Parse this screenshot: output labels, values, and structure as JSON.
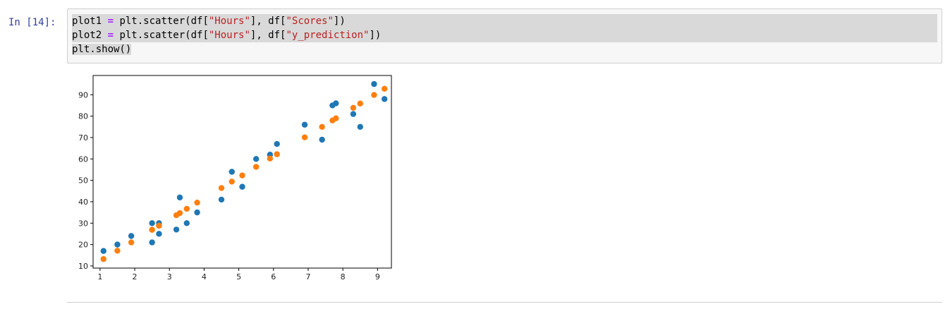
{
  "cell": {
    "prompt": "In [14]:",
    "code_lines": [
      [
        {
          "t": "plot1 ",
          "c": ""
        },
        {
          "t": "=",
          "c": "op"
        },
        {
          "t": " plt.scatter(df[",
          "c": ""
        },
        {
          "t": "\"Hours\"",
          "c": "str"
        },
        {
          "t": "], df[",
          "c": ""
        },
        {
          "t": "\"Scores\"",
          "c": "str"
        },
        {
          "t": "])",
          "c": ""
        }
      ],
      [
        {
          "t": "plot2 ",
          "c": ""
        },
        {
          "t": "=",
          "c": "op"
        },
        {
          "t": " plt.scatter(df[",
          "c": ""
        },
        {
          "t": "\"Hours\"",
          "c": "str"
        },
        {
          "t": "], df[",
          "c": ""
        },
        {
          "t": "\"y_prediction\"",
          "c": "str"
        },
        {
          "t": "])",
          "c": ""
        }
      ],
      [
        {
          "t": "plt.show()",
          "c": ""
        }
      ]
    ]
  },
  "colors": {
    "series1": "#1f77b4",
    "series2": "#ff7f0e",
    "prompt": "#303f9f",
    "keyword_op": "#aa22ff",
    "string": "#ba2121"
  },
  "chart_data": {
    "type": "scatter",
    "xlim": [
      0.8,
      9.4
    ],
    "ylim": [
      9,
      99
    ],
    "xticks": [
      1,
      2,
      3,
      4,
      5,
      6,
      7,
      8,
      9
    ],
    "yticks": [
      10,
      20,
      30,
      40,
      50,
      60,
      70,
      80,
      90
    ],
    "grid": false,
    "series": [
      {
        "color": "#1f77b4",
        "points": [
          [
            2.5,
            21
          ],
          [
            5.1,
            47
          ],
          [
            3.2,
            27
          ],
          [
            8.5,
            75
          ],
          [
            3.5,
            30
          ],
          [
            1.5,
            20
          ],
          [
            9.2,
            88
          ],
          [
            5.5,
            60
          ],
          [
            8.3,
            81
          ],
          [
            2.7,
            25
          ],
          [
            7.7,
            85
          ],
          [
            5.9,
            62
          ],
          [
            4.5,
            41
          ],
          [
            3.3,
            42
          ],
          [
            1.1,
            17
          ],
          [
            8.9,
            95
          ],
          [
            2.5,
            30
          ],
          [
            1.9,
            24
          ],
          [
            6.1,
            67
          ],
          [
            7.4,
            69
          ],
          [
            2.7,
            30
          ],
          [
            4.8,
            54
          ],
          [
            3.8,
            35
          ],
          [
            6.9,
            76
          ],
          [
            7.8,
            86
          ]
        ]
      },
      {
        "color": "#ff7f0e",
        "points": [
          [
            2.5,
            26.9
          ],
          [
            5.1,
            52.3
          ],
          [
            3.2,
            33.7
          ],
          [
            8.5,
            85.9
          ],
          [
            3.5,
            36.7
          ],
          [
            1.5,
            17.1
          ],
          [
            9.2,
            92.8
          ],
          [
            5.5,
            56.3
          ],
          [
            8.3,
            83.9
          ],
          [
            2.7,
            28.8
          ],
          [
            7.7,
            78.0
          ],
          [
            5.9,
            60.2
          ],
          [
            4.5,
            46.4
          ],
          [
            3.3,
            34.7
          ],
          [
            1.1,
            13.2
          ],
          [
            8.9,
            89.9
          ],
          [
            2.5,
            26.9
          ],
          [
            1.9,
            21.0
          ],
          [
            6.1,
            62.2
          ],
          [
            7.4,
            75.0
          ],
          [
            2.7,
            28.8
          ],
          [
            4.8,
            49.4
          ],
          [
            3.8,
            39.6
          ],
          [
            6.9,
            70.1
          ],
          [
            7.8,
            79.0
          ]
        ]
      }
    ]
  }
}
